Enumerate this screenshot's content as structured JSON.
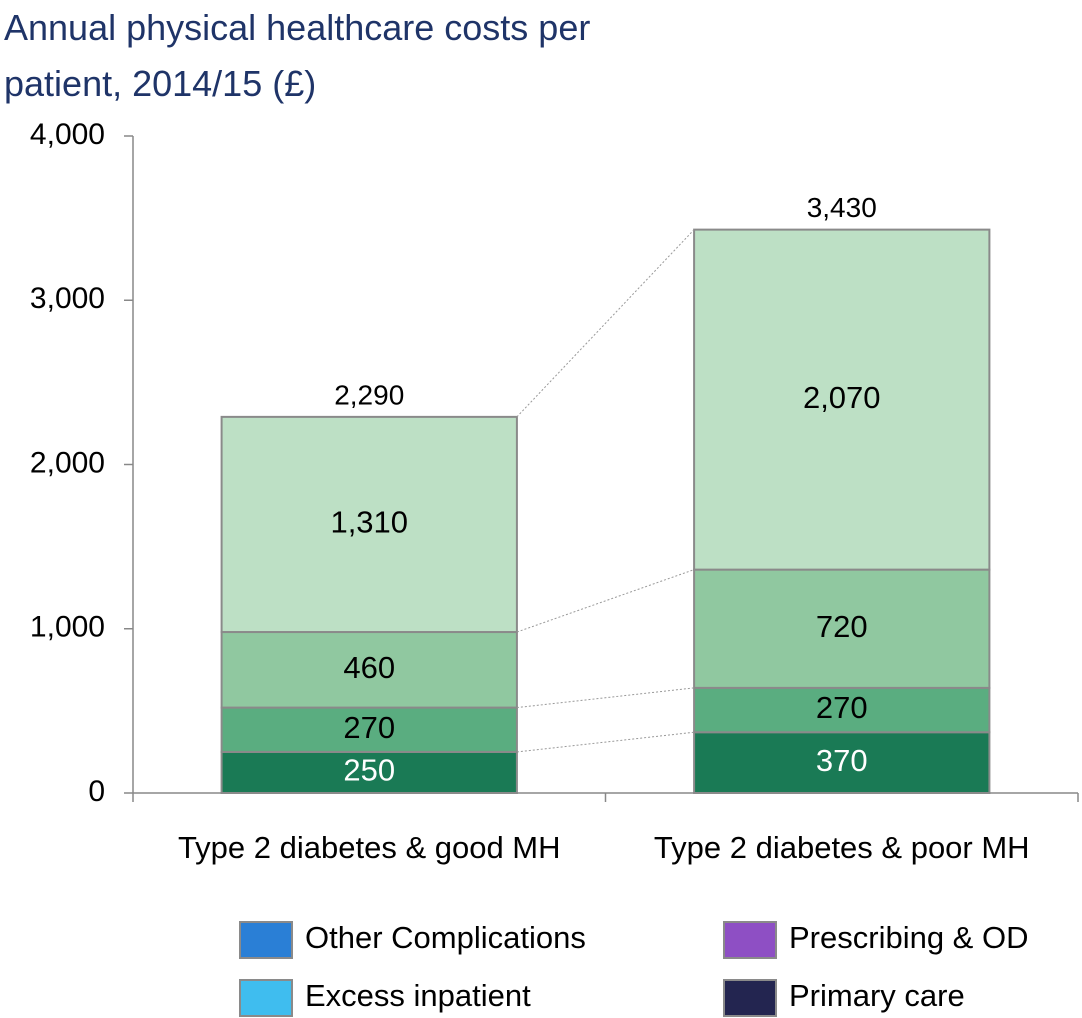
{
  "chart_data": {
    "type": "stacked_bar",
    "title": "Annual physical healthcare costs per patient, 2014/15 (£)",
    "categories": [
      "Type 2 diabetes & good MH",
      "Type 2 diabetes & poor MH"
    ],
    "series": [
      {
        "name": "Primary care",
        "color": "#1a7a55",
        "legend_color": "#232550",
        "label_color": "#ffffff",
        "values": [
          250,
          370
        ]
      },
      {
        "name": "Prescribing & OD",
        "color": "#5aad80",
        "legend_color": "#8e4fc4",
        "label_color": "#000000",
        "values": [
          270,
          270
        ]
      },
      {
        "name": "Excess inpatient",
        "color": "#90c8a0",
        "legend_color": "#3fbdef",
        "label_color": "#000000",
        "values": [
          460,
          720
        ]
      },
      {
        "name": "Other Complications",
        "color": "#bde0c5",
        "legend_color": "#2a7fd6",
        "label_color": "#000000",
        "values": [
          1310,
          2070
        ],
        "value_labels": [
          "1,310",
          "2,070"
        ]
      }
    ],
    "totals": [
      2290,
      3430
    ],
    "totals_labels": [
      "2,290",
      "3,430"
    ],
    "ylim": [
      0,
      4000
    ],
    "yticks": [
      0,
      {
        "value": 1000,
        "label": "1,000"
      },
      {
        "value": 2000,
        "label": "2,000"
      },
      {
        "value": 3000,
        "label": "3,000"
      },
      {
        "value": 4000,
        "label": "4,000"
      }
    ]
  }
}
